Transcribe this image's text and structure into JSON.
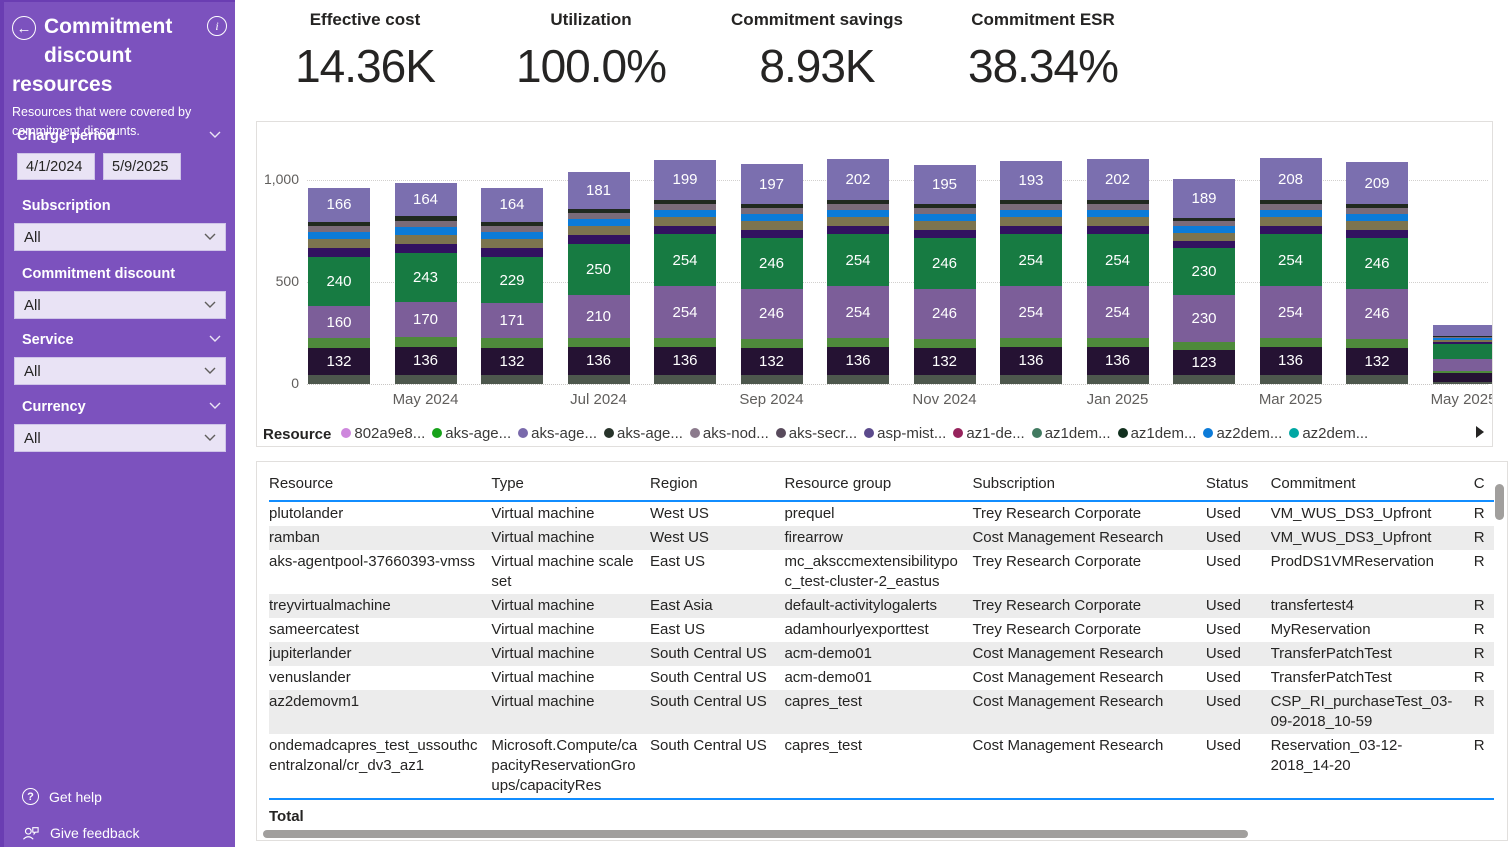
{
  "colors": {
    "sidebar_purple": "#7C52BE",
    "table_accent_blue": "#118DFF",
    "axis_text": "#605E5C"
  },
  "icons": {
    "back": "←",
    "info": "i",
    "help": "?"
  },
  "sidebar": {
    "title": "Commitment discount resources",
    "subtitle": "Resources that were covered by commitment discounts.",
    "filters": [
      {
        "label": "Charge period",
        "type": "date-range",
        "start": "4/1/2024",
        "end": "5/9/2025"
      },
      {
        "label": "Subscription",
        "type": "dropdown",
        "value": "All"
      },
      {
        "label": "Commitment discount",
        "type": "dropdown",
        "value": "All"
      },
      {
        "label": "Service",
        "type": "dropdown",
        "value": "All"
      },
      {
        "label": "Currency",
        "type": "dropdown",
        "value": "All"
      }
    ],
    "help_label": "Get help",
    "feedback_label": "Give feedback"
  },
  "kpis": [
    {
      "label": "Effective cost",
      "value": "14.36K"
    },
    {
      "label": "Utilization",
      "value": "100.0%"
    },
    {
      "label": "Commitment savings",
      "value": "8.93K"
    },
    {
      "label": "Commitment ESR",
      "value": "38.34%"
    }
  ],
  "chart_data": {
    "type": "bar",
    "subtype": "stacked-column",
    "title": "",
    "xlabel": "",
    "ylabel": "",
    "x": [
      "Apr 2024",
      "May 2024",
      "Jun 2024",
      "Jul 2024",
      "Aug 2024",
      "Sep 2024",
      "Oct 2024",
      "Nov 2024",
      "Dec 2024",
      "Jan 2025",
      "Feb 2025",
      "Mar 2025",
      "Apr 2025",
      "May 2025"
    ],
    "x_axis_labels": [
      "May 2024",
      "Jul 2024",
      "Sep 2024",
      "Nov 2024",
      "Jan 2025",
      "Mar 2025",
      "May 2025"
    ],
    "x_tick_indices": [
      1,
      3,
      5,
      7,
      9,
      11,
      13
    ],
    "y_ticks": [
      {
        "label": "0",
        "value": 0
      },
      {
        "label": "500",
        "value": 500
      },
      {
        "label": "1,000",
        "value": 1000
      }
    ],
    "ylim": [
      0,
      1265
    ],
    "grid": "dotted-horizontal",
    "legend_position": "bottom",
    "series": [
      {
        "name": "segment-sage-base",
        "color": "#4D574D",
        "labeled": false,
        "values": [
          46,
          46,
          46,
          46,
          46,
          46,
          46,
          46,
          46,
          46,
          42,
          46,
          46,
          12
        ]
      },
      {
        "name": "segment-dark-purple",
        "color": "#251233",
        "labeled": true,
        "values": [
          132,
          136,
          132,
          136,
          136,
          132,
          136,
          132,
          136,
          136,
          123,
          136,
          132,
          40
        ]
      },
      {
        "name": "segment-light-green",
        "color": "#4E8A3B",
        "labeled": false,
        "values": [
          46,
          48,
          46,
          46,
          44,
          44,
          44,
          44,
          44,
          44,
          40,
          44,
          44,
          10
        ]
      },
      {
        "name": "segment-purple",
        "color": "#7C5E99",
        "labeled": true,
        "values": [
          160,
          170,
          171,
          210,
          254,
          246,
          254,
          246,
          254,
          254,
          230,
          254,
          246,
          60
        ]
      },
      {
        "name": "segment-green",
        "color": "#177B42",
        "labeled": true,
        "values": [
          240,
          243,
          229,
          250,
          254,
          246,
          254,
          246,
          254,
          254,
          230,
          254,
          246,
          75
        ]
      },
      {
        "name": "segment-indigo",
        "color": "#321260",
        "labeled": false,
        "values": [
          41,
          42,
          41,
          41,
          40,
          40,
          40,
          40,
          40,
          40,
          36,
          40,
          40,
          9
        ]
      },
      {
        "name": "segment-khaki",
        "color": "#7C744F",
        "labeled": false,
        "values": [
          46,
          47,
          46,
          46,
          44,
          44,
          44,
          44,
          44,
          44,
          40,
          44,
          44,
          10
        ]
      },
      {
        "name": "segment-blue",
        "color": "#0B7BD8",
        "labeled": false,
        "values": [
          36,
          38,
          36,
          36,
          35,
          35,
          35,
          35,
          35,
          35,
          32,
          35,
          35,
          8
        ]
      },
      {
        "name": "segment-mauve",
        "color": "#7A6B79",
        "labeled": false,
        "values": [
          29,
          30,
          29,
          29,
          28,
          28,
          28,
          28,
          28,
          28,
          25,
          28,
          28,
          6
        ]
      },
      {
        "name": "segment-forest",
        "color": "#20291F",
        "labeled": false,
        "values": [
          20,
          22,
          20,
          20,
          20,
          20,
          20,
          20,
          20,
          20,
          18,
          20,
          20,
          5
        ]
      },
      {
        "name": "segment-light-purple",
        "color": "#7B6FAF",
        "labeled": true,
        "values": [
          166,
          164,
          164,
          181,
          199,
          197,
          202,
          195,
          193,
          202,
          189,
          208,
          209,
          55
        ]
      }
    ]
  },
  "legend": {
    "title": "Resource",
    "items": [
      {
        "label": "802a9e8...",
        "color": "#CE87DD"
      },
      {
        "label": "aks-age...",
        "color": "#17A21A"
      },
      {
        "label": "aks-age...",
        "color": "#7969AB"
      },
      {
        "label": "aks-age...",
        "color": "#27332A"
      },
      {
        "label": "aks-nod...",
        "color": "#8B7A8C"
      },
      {
        "label": "aks-secr...",
        "color": "#584A5C"
      },
      {
        "label": "asp-mist...",
        "color": "#5B4A8C"
      },
      {
        "label": "az1-de...",
        "color": "#96235C"
      },
      {
        "label": "az1dem...",
        "color": "#417A60"
      },
      {
        "label": "az1dem...",
        "color": "#11301E"
      },
      {
        "label": "az2dem...",
        "color": "#0C7BD8"
      },
      {
        "label": "az2dem...",
        "color": "#00A7A3"
      }
    ]
  },
  "table": {
    "columns": [
      "Resource",
      "Type",
      "Region",
      "Resource group",
      "Subscription",
      "Status",
      "Commitment",
      "C"
    ],
    "rows": [
      [
        "plutolander",
        "Virtual machine",
        "West US",
        "prequel",
        "Trey Research Corporate",
        "Used",
        "VM_WUS_DS3_Upfront",
        "R"
      ],
      [
        "ramban",
        "Virtual machine",
        "West US",
        "firearrow",
        "Cost Management Research",
        "Used",
        "VM_WUS_DS3_Upfront",
        "R"
      ],
      [
        "aks-agentpool-37660393-vmss",
        "Virtual machine scale set",
        "East US",
        "mc_aksccmextensibilitypoc_test-cluster-2_eastus",
        "Trey Research Corporate",
        "Used",
        "ProdDS1VMReservation",
        "R"
      ],
      [
        "treyvirtualmachine",
        "Virtual machine",
        "East Asia",
        "default-activitylogalerts",
        "Trey Research Corporate",
        "Used",
        "transfertest4",
        "R"
      ],
      [
        "sameercatest",
        "Virtual machine",
        "East US",
        "adamhourlyexporttest",
        "Trey Research Corporate",
        "Used",
        "MyReservation",
        "R"
      ],
      [
        "jupiterlander",
        "Virtual machine",
        "South Central US",
        "acm-demo01",
        "Cost Management Research",
        "Used",
        "TransferPatchTest",
        "R"
      ],
      [
        "venuslander",
        "Virtual machine",
        "South Central US",
        "acm-demo01",
        "Cost Management Research",
        "Used",
        "TransferPatchTest",
        "R"
      ],
      [
        "az2demovm1",
        "Virtual machine",
        "South Central US",
        "capres_test",
        "Cost Management Research",
        "Used",
        "CSP_RI_purchaseTest_03-09-2018_10-59",
        "R"
      ],
      [
        "ondemadcapres_test_ussouthcentralzonal/cr_dv3_az1",
        "Microsoft.Compute/capacityReservationGroups/capacityRes",
        "South Central US",
        "capres_test",
        "Cost Management Research",
        "Used",
        "Reservation_03-12-2018_14-20",
        "R"
      ]
    ],
    "total_label": "Total"
  }
}
